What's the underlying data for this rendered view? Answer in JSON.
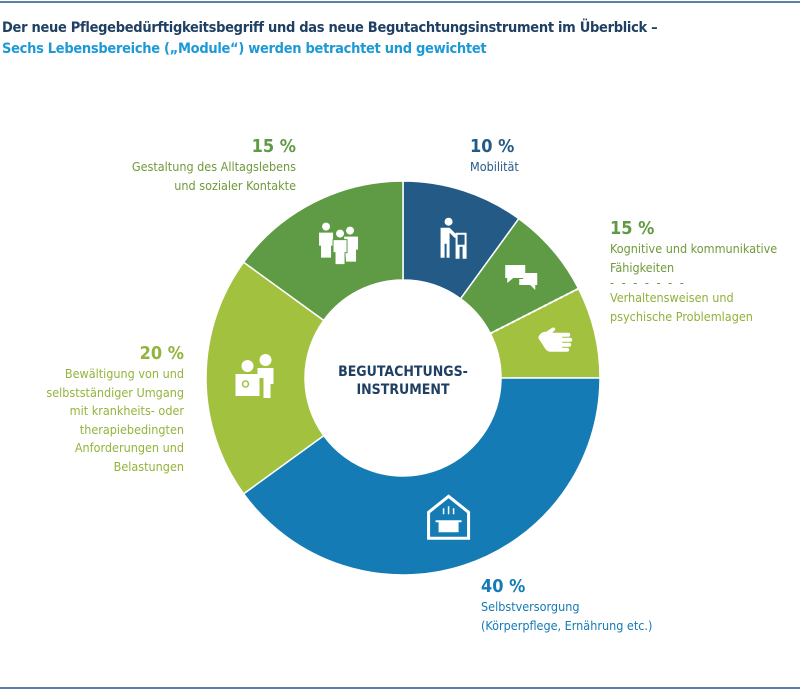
{
  "header": {
    "title": "Der neue Pflegebedürftigkeitsbegriff und das neue Begutachtungsinstrument im Überblick –",
    "subtitle": "Sechs Lebensbereiche („Module“) werden betrachtet und gewichtet"
  },
  "chart_data": {
    "type": "pie",
    "donut": true,
    "center_label": [
      "BEGUTACHTUNGS-",
      "INSTRUMENT"
    ],
    "start": "12 o'clock, clockwise",
    "slices": [
      {
        "label": "Mobilität",
        "value": 10,
        "pct_label": "10 %",
        "color": "#245a86",
        "icon": "walker-person-icon"
      },
      {
        "label": "Kognitive und kommunikative Fähigkeiten",
        "value": 7.5,
        "color": "#5f9b45",
        "icon": "speech-bubbles-icon"
      },
      {
        "label": "Verhaltensweisen und psychische Problemlagen",
        "value": 7.5,
        "color": "#a2c13f",
        "icon": "hand-icon"
      },
      {
        "label": "Selbstversorgung (Körperpflege, Ernährung etc.)",
        "value": 40,
        "pct_label": "40 %",
        "color": "#157bb5",
        "icon": "house-pot-icon"
      },
      {
        "label": "Bewältigung von und selbstständiger Umgang mit krankheits- oder therapiebedingten Anforderungen und Belastungen",
        "value": 20,
        "pct_label": "20 %",
        "color": "#a2c13f",
        "icon": "doctor-patient-icon"
      },
      {
        "label": "Gestaltung des Alltagslebens und sozialer Kontakte",
        "value": 15,
        "pct_label": "15 %",
        "color": "#5f9b45",
        "icon": "people-group-icon"
      }
    ],
    "combined_label": {
      "pct_label": "15 %",
      "note": "Kognitive + Verhaltensweisen"
    }
  },
  "labels": {
    "mobil": {
      "pct": "10 %",
      "lines": [
        "Mobilität"
      ]
    },
    "kogn": {
      "pct": "15 %",
      "lines": [
        "Kognitive und kommunikative",
        "Fähigkeiten"
      ],
      "divider": "- - - - - - -",
      "lines2": [
        "Verhaltensweisen und",
        "psychische Problemlagen"
      ]
    },
    "selbst": {
      "pct": "40 %",
      "lines": [
        "Selbstversorgung",
        "(Körperpflege, Ernährung etc.)"
      ]
    },
    "bew": {
      "pct": "20 %",
      "lines": [
        "Bewältigung von und",
        "selbstständiger Umgang",
        "mit krankheits- oder",
        "therapiebedingten",
        "Anforderungen und",
        "Belastungen"
      ]
    },
    "gest": {
      "pct": "15 %",
      "lines": [
        "Gestaltung des Alltagslebens",
        "und sozialer Kontakte"
      ]
    }
  }
}
